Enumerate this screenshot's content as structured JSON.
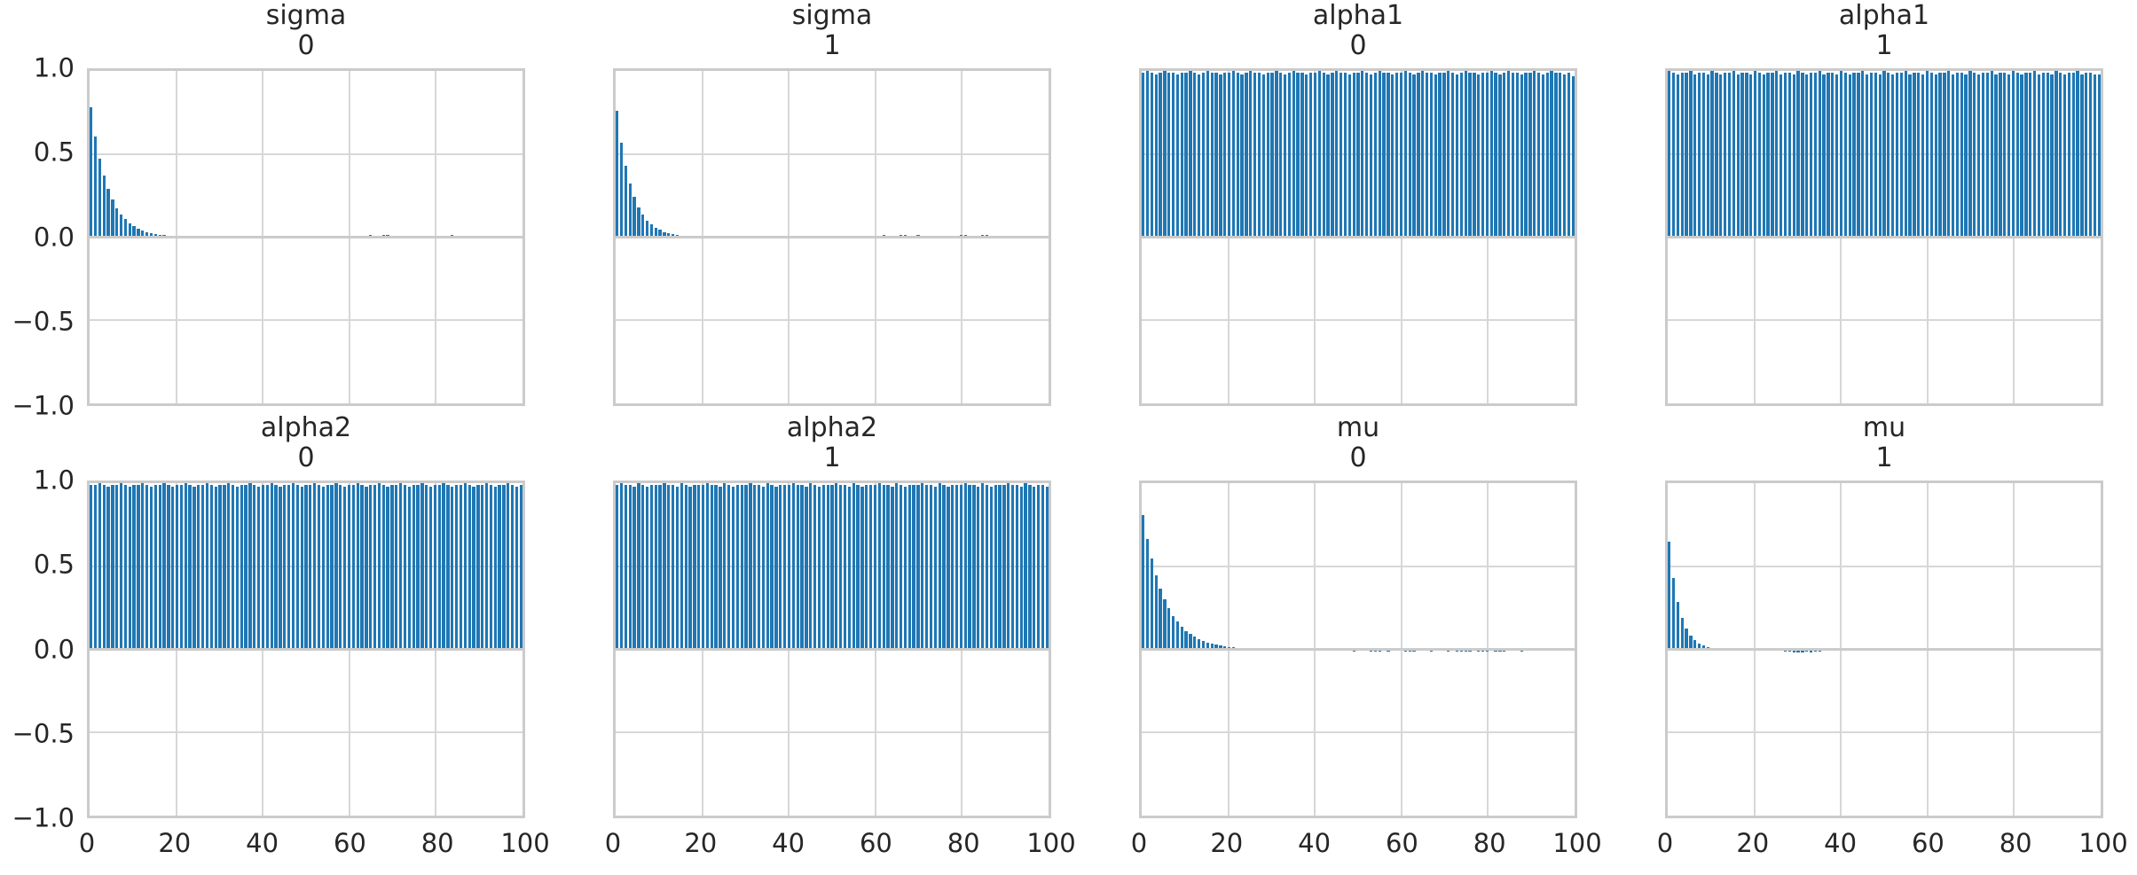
{
  "figure": {
    "kind": "autocorrelation-grid",
    "rows": 2,
    "cols": 4,
    "colors": {
      "bar": "#1f77b4",
      "gridline": "#d7d7d7",
      "spine": "#cbcbcb",
      "zero_line": "#cbcbcb",
      "text": "#262626",
      "background": "#ffffff"
    },
    "y_tick_labels": [
      "1.0",
      "0.5",
      "0.0",
      "−0.5",
      "−1.0"
    ],
    "x_tick_labels": [
      "0",
      "20",
      "40",
      "60",
      "80",
      "100"
    ]
  },
  "chart_data": [
    {
      "type": "bar",
      "title": "sigma",
      "subtitle": "0",
      "xlabel": "",
      "ylabel": "",
      "xlim": [
        0,
        100
      ],
      "ylim": [
        -1.0,
        1.0
      ],
      "x_ticks": [
        0,
        20,
        40,
        60,
        80,
        100
      ],
      "y_ticks": [
        1.0,
        0.5,
        0.0,
        -0.5,
        -1.0
      ],
      "grid": true,
      "values": [
        0.78,
        0.608,
        0.474,
        0.37,
        0.289,
        0.225,
        0.176,
        0.137,
        0.107,
        0.083,
        0.065,
        0.051,
        0.04,
        0.031,
        0.024,
        0.019,
        0.015,
        0.011,
        0.009,
        0.007,
        0.005,
        0.004,
        0.003,
        0.002,
        0.002,
        0.003,
        0.002,
        -0.002,
        -0.003,
        -0.002,
        0.005,
        0.007,
        0.006,
        0.004,
        -0.003,
        -0.004,
        -0.003,
        0.003,
        0.005,
        0.004,
        0.003,
        -0.003,
        -0.006,
        -0.007,
        -0.006,
        -0.004,
        0.004,
        0.005,
        0.007,
        0.009,
        0.008,
        0.006,
        0.005,
        0.006,
        0.007,
        0.006,
        -0.004,
        -0.005,
        -0.004,
        0.004,
        0.007,
        0.009,
        0.01,
        0.008,
        0.009,
        0.011,
        0.01,
        0.009,
        0.011,
        0.012,
        0.01,
        0.009,
        0.008,
        -0.004,
        -0.006,
        -0.005,
        -0.003,
        0.005,
        0.007,
        0.006,
        0.009,
        0.01,
        0.008,
        0.009,
        0.011,
        0.009,
        0.007,
        0.008,
        0.01,
        0.009,
        0.007,
        -0.003,
        -0.005,
        -0.004,
        -0.002,
        0.003,
        0.006,
        0.008,
        0.007,
        0.005,
        0.004
      ]
    },
    {
      "type": "bar",
      "title": "sigma",
      "subtitle": "1",
      "xlabel": "",
      "ylabel": "",
      "xlim": [
        0,
        100
      ],
      "ylim": [
        -1.0,
        1.0
      ],
      "x_ticks": [
        0,
        20,
        40,
        60,
        80,
        100
      ],
      "y_ticks": [
        1.0,
        0.5,
        0.0,
        -0.5,
        -1.0
      ],
      "grid": true,
      "values": [
        0.76,
        0.57,
        0.428,
        0.321,
        0.241,
        0.18,
        0.135,
        0.101,
        0.076,
        0.057,
        0.043,
        0.032,
        0.024,
        0.018,
        0.014,
        0.01,
        0.008,
        0.006,
        0.004,
        0.003,
        0.003,
        0.002,
        0.002,
        0.003,
        0.004,
        0.003,
        -0.002,
        -0.003,
        -0.002,
        0.002,
        0.004,
        0.005,
        0.004,
        0.003,
        0.004,
        0.005,
        0.006,
        0.005,
        0.004,
        -0.002,
        -0.004,
        -0.005,
        -0.004,
        -0.003,
        0.003,
        0.004,
        0.005,
        0.004,
        0.003,
        -0.003,
        -0.004,
        -0.003,
        0.004,
        0.006,
        0.007,
        0.005,
        0.004,
        0.005,
        0.006,
        0.005,
        0.008,
        0.01,
        0.011,
        0.01,
        0.009,
        0.01,
        0.012,
        0.011,
        0.009,
        0.01,
        0.011,
        0.01,
        0.009,
        0.008,
        0.009,
        0.01,
        0.008,
        0.007,
        0.008,
        0.009,
        0.011,
        0.012,
        0.01,
        0.009,
        0.01,
        0.012,
        0.011,
        0.009,
        0.01,
        0.008,
        0.007,
        0.008,
        0.009,
        0.007,
        -0.003,
        -0.005,
        -0.004,
        0.004,
        0.006,
        0.005,
        0.004
      ]
    },
    {
      "type": "bar",
      "title": "alpha1",
      "subtitle": "0",
      "xlabel": "",
      "ylabel": "",
      "xlim": [
        0,
        100
      ],
      "ylim": [
        -1.0,
        1.0
      ],
      "x_ticks": [
        0,
        20,
        40,
        60,
        80,
        100
      ],
      "y_ticks": [
        1.0,
        0.5,
        0.0,
        -0.5,
        -1.0
      ],
      "grid": true,
      "values": [
        0.99,
        1.0,
        0.99,
        0.98,
        0.99,
        1.0,
        0.99,
        0.99,
        0.98,
        0.99,
        0.99,
        1.0,
        0.99,
        0.98,
        0.99,
        1.0,
        0.99,
        0.99,
        0.98,
        0.99,
        0.99,
        1.0,
        0.99,
        0.98,
        0.99,
        1.0,
        0.99,
        0.99,
        0.98,
        0.99,
        0.99,
        1.0,
        0.99,
        0.98,
        0.99,
        1.0,
        0.99,
        0.99,
        0.98,
        0.99,
        0.99,
        1.0,
        0.99,
        0.98,
        0.99,
        1.0,
        0.99,
        0.99,
        0.98,
        0.99,
        0.99,
        1.0,
        0.99,
        0.98,
        0.99,
        1.0,
        0.99,
        0.99,
        0.98,
        0.99,
        0.99,
        1.0,
        0.99,
        0.98,
        0.99,
        1.0,
        0.99,
        0.99,
        0.98,
        0.99,
        0.99,
        1.0,
        0.99,
        0.98,
        0.99,
        1.0,
        0.99,
        0.99,
        0.98,
        0.99,
        0.99,
        1.0,
        0.99,
        0.98,
        0.99,
        1.0,
        0.99,
        0.99,
        0.98,
        0.99,
        0.99,
        1.0,
        0.99,
        0.98,
        0.99,
        1.0,
        0.99,
        0.99,
        0.98,
        0.99,
        0.97
      ]
    },
    {
      "type": "bar",
      "title": "alpha1",
      "subtitle": "1",
      "xlabel": "",
      "ylabel": "",
      "xlim": [
        0,
        100
      ],
      "ylim": [
        -1.0,
        1.0
      ],
      "x_ticks": [
        0,
        20,
        40,
        60,
        80,
        100
      ],
      "y_ticks": [
        1.0,
        0.5,
        0.0,
        -0.5,
        -1.0
      ],
      "grid": true,
      "values": [
        1.0,
        0.99,
        0.98,
        0.99,
        0.99,
        1.0,
        0.98,
        0.99,
        0.99,
        0.98,
        1.0,
        0.99,
        0.98,
        0.99,
        0.99,
        1.0,
        0.98,
        0.99,
        0.99,
        0.98,
        1.0,
        0.99,
        0.98,
        0.99,
        0.99,
        1.0,
        0.98,
        0.99,
        0.99,
        0.98,
        1.0,
        0.99,
        0.98,
        0.99,
        0.99,
        1.0,
        0.98,
        0.99,
        0.99,
        0.98,
        1.0,
        0.99,
        0.98,
        0.99,
        0.99,
        1.0,
        0.98,
        0.99,
        0.99,
        0.98,
        1.0,
        0.99,
        0.98,
        0.99,
        0.99,
        1.0,
        0.98,
        0.99,
        0.99,
        0.98,
        1.0,
        0.99,
        0.98,
        0.99,
        0.99,
        1.0,
        0.98,
        0.99,
        0.99,
        0.98,
        1.0,
        0.99,
        0.98,
        0.99,
        0.99,
        1.0,
        0.98,
        0.99,
        0.99,
        0.98,
        1.0,
        0.99,
        0.98,
        0.99,
        0.99,
        1.0,
        0.98,
        0.99,
        0.99,
        0.98,
        1.0,
        0.99,
        0.98,
        0.99,
        0.99,
        1.0,
        0.98,
        0.99,
        0.99,
        0.98,
        0.98
      ]
    },
    {
      "type": "bar",
      "title": "alpha2",
      "subtitle": "0",
      "xlabel": "",
      "ylabel": "",
      "xlim": [
        0,
        100
      ],
      "ylim": [
        -1.0,
        1.0
      ],
      "x_ticks": [
        0,
        20,
        40,
        60,
        80,
        100
      ],
      "y_ticks": [
        1.0,
        0.5,
        0.0,
        -0.5,
        -1.0
      ],
      "grid": true,
      "values": [
        0.99,
        0.99,
        1.0,
        0.99,
        0.98,
        0.99,
        0.99,
        1.0,
        0.99,
        0.98,
        0.99,
        0.99,
        1.0,
        0.99,
        0.98,
        0.99,
        0.99,
        1.0,
        0.99,
        0.98,
        0.99,
        0.99,
        1.0,
        0.99,
        0.98,
        0.99,
        0.99,
        1.0,
        0.99,
        0.98,
        0.99,
        0.99,
        1.0,
        0.99,
        0.98,
        0.99,
        0.99,
        1.0,
        0.99,
        0.98,
        0.99,
        0.99,
        1.0,
        0.99,
        0.98,
        0.99,
        0.99,
        1.0,
        0.99,
        0.98,
        0.99,
        0.99,
        1.0,
        0.99,
        0.98,
        0.99,
        0.99,
        1.0,
        0.99,
        0.98,
        0.99,
        0.99,
        1.0,
        0.99,
        0.98,
        0.99,
        0.99,
        1.0,
        0.99,
        0.98,
        0.99,
        0.99,
        1.0,
        0.99,
        0.98,
        0.99,
        0.99,
        1.0,
        0.99,
        0.98,
        0.99,
        0.99,
        1.0,
        0.99,
        0.98,
        0.99,
        0.99,
        1.0,
        0.99,
        0.98,
        0.99,
        0.99,
        1.0,
        0.99,
        0.98,
        0.99,
        0.99,
        1.0,
        0.99,
        0.98,
        0.99
      ]
    },
    {
      "type": "bar",
      "title": "alpha2",
      "subtitle": "1",
      "xlabel": "",
      "ylabel": "",
      "xlim": [
        0,
        100
      ],
      "ylim": [
        -1.0,
        1.0
      ],
      "x_ticks": [
        0,
        20,
        40,
        60,
        80,
        100
      ],
      "y_ticks": [
        1.0,
        0.5,
        0.0,
        -0.5,
        -1.0
      ],
      "grid": true,
      "values": [
        0.99,
        1.0,
        0.99,
        0.99,
        0.98,
        1.0,
        0.99,
        0.98,
        0.99,
        0.99,
        0.99,
        1.0,
        0.99,
        0.99,
        0.98,
        1.0,
        0.99,
        0.98,
        0.99,
        0.99,
        0.99,
        1.0,
        0.99,
        0.99,
        0.98,
        1.0,
        0.99,
        0.98,
        0.99,
        0.99,
        0.99,
        1.0,
        0.99,
        0.99,
        0.98,
        1.0,
        0.99,
        0.98,
        0.99,
        0.99,
        0.99,
        1.0,
        0.99,
        0.99,
        0.98,
        1.0,
        0.99,
        0.98,
        0.99,
        0.99,
        0.99,
        1.0,
        0.99,
        0.99,
        0.98,
        1.0,
        0.99,
        0.98,
        0.99,
        0.99,
        0.99,
        1.0,
        0.99,
        0.99,
        0.98,
        1.0,
        0.99,
        0.98,
        0.99,
        0.99,
        0.99,
        1.0,
        0.99,
        0.99,
        0.98,
        1.0,
        0.99,
        0.98,
        0.99,
        0.99,
        0.99,
        1.0,
        0.99,
        0.99,
        0.98,
        1.0,
        0.99,
        0.98,
        0.99,
        0.99,
        0.99,
        1.0,
        0.99,
        0.99,
        0.98,
        1.0,
        0.99,
        0.98,
        0.99,
        0.99,
        0.98
      ]
    },
    {
      "type": "bar",
      "title": "mu",
      "subtitle": "0",
      "xlabel": "",
      "ylabel": "",
      "xlim": [
        0,
        100
      ],
      "ylim": [
        -1.0,
        1.0
      ],
      "x_ticks": [
        0,
        20,
        40,
        60,
        80,
        100
      ],
      "y_ticks": [
        1.0,
        0.5,
        0.0,
        -0.5,
        -1.0
      ],
      "grid": true,
      "values": [
        0.81,
        0.664,
        0.545,
        0.447,
        0.366,
        0.3,
        0.246,
        0.202,
        0.166,
        0.136,
        0.111,
        0.091,
        0.075,
        0.061,
        0.05,
        0.041,
        0.034,
        0.028,
        0.023,
        0.019,
        0.015,
        0.013,
        0.01,
        0.008,
        0.007,
        0.006,
        0.005,
        0.004,
        0.003,
        0.003,
        0.002,
        0.002,
        -0.002,
        -0.003,
        -0.004,
        -0.003,
        -0.002,
        0.002,
        0.003,
        0.002,
        -0.003,
        -0.005,
        -0.006,
        -0.007,
        -0.008,
        -0.009,
        -0.01,
        -0.009,
        -0.01,
        -0.011,
        -0.01,
        -0.009,
        -0.01,
        -0.011,
        -0.012,
        -0.011,
        -0.01,
        -0.011,
        -0.01,
        -0.009,
        -0.01,
        -0.011,
        -0.012,
        -0.011,
        -0.01,
        -0.009,
        -0.01,
        -0.011,
        -0.01,
        -0.009,
        -0.01,
        -0.011,
        -0.01,
        -0.012,
        -0.013,
        -0.012,
        -0.011,
        -0.01,
        -0.011,
        -0.012,
        -0.011,
        -0.01,
        -0.011,
        -0.012,
        -0.011,
        -0.01,
        -0.009,
        -0.01,
        -0.011,
        -0.01,
        -0.009,
        -0.008,
        -0.007,
        -0.006,
        -0.005,
        -0.004,
        -0.003,
        -0.004,
        -0.005,
        -0.004,
        -0.003
      ]
    },
    {
      "type": "bar",
      "title": "mu",
      "subtitle": "1",
      "xlabel": "",
      "ylabel": "",
      "xlim": [
        0,
        100
      ],
      "ylim": [
        -1.0,
        1.0
      ],
      "x_ticks": [
        0,
        20,
        40,
        60,
        80,
        100
      ],
      "y_ticks": [
        1.0,
        0.5,
        0.0,
        -0.5,
        -1.0
      ],
      "grid": true,
      "values": [
        0.65,
        0.429,
        0.283,
        0.187,
        0.123,
        0.081,
        0.054,
        0.035,
        0.023,
        0.015,
        0.01,
        0.007,
        0.005,
        0.003,
        0.002,
        0.002,
        0.002,
        -0.003,
        -0.005,
        -0.006,
        -0.005,
        -0.004,
        -0.005,
        -0.006,
        -0.005,
        -0.004,
        -0.008,
        -0.012,
        -0.015,
        -0.017,
        -0.018,
        -0.016,
        -0.015,
        -0.016,
        -0.014,
        -0.012,
        -0.01,
        -0.009,
        -0.008,
        -0.009,
        -0.01,
        -0.008,
        -0.007,
        -0.008,
        -0.006,
        -0.005,
        0.003,
        0.004,
        -0.004,
        -0.006,
        -0.005,
        -0.004,
        -0.005,
        -0.006,
        -0.004,
        -0.003,
        0.002,
        -0.004,
        -0.005,
        -0.006,
        -0.005,
        -0.004,
        -0.005,
        -0.004,
        0.003,
        0.004,
        0.003,
        -0.003,
        -0.004,
        -0.003,
        0.002,
        0.003,
        0.002,
        -0.002,
        -0.003,
        -0.002,
        0.004,
        0.006,
        0.008,
        0.009,
        0.01,
        0.009,
        0.008,
        0.009,
        0.01,
        0.008,
        0.006,
        0.005,
        0.006,
        -0.003,
        -0.005,
        -0.004,
        -0.006,
        -0.007,
        -0.006,
        -0.008,
        -0.007,
        -0.005,
        -0.006,
        -0.004,
        -0.003
      ]
    }
  ]
}
